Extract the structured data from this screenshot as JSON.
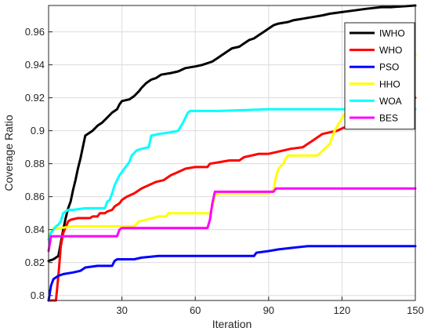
{
  "chart_data": {
    "type": "line",
    "title": "",
    "xlabel": "Iteration",
    "ylabel": "Coverage Ratio",
    "xlim": [
      0,
      150
    ],
    "ylim": [
      0.797,
      0.976
    ],
    "xticks": [
      30,
      60,
      90,
      120,
      150
    ],
    "yticks": [
      0.8,
      0.82,
      0.84,
      0.86,
      0.88,
      0.9,
      0.92,
      0.94,
      0.96
    ],
    "ytick_labels": [
      "0.8",
      "0.82",
      "0.84",
      "0.86",
      "0.88",
      "0.9",
      "0.92",
      "0.94",
      "0.96"
    ],
    "grid": true,
    "legend_position": "top-right",
    "series": [
      {
        "name": "IWHO",
        "color": "#000000",
        "points": [
          [
            0,
            0.821
          ],
          [
            2,
            0.822
          ],
          [
            4,
            0.824
          ],
          [
            5,
            0.832
          ],
          [
            6,
            0.84
          ],
          [
            7,
            0.847
          ],
          [
            8,
            0.853
          ],
          [
            9,
            0.857
          ],
          [
            10,
            0.864
          ],
          [
            11,
            0.87
          ],
          [
            12,
            0.877
          ],
          [
            13,
            0.883
          ],
          [
            14,
            0.89
          ],
          [
            15,
            0.897
          ],
          [
            17,
            0.899
          ],
          [
            18,
            0.9
          ],
          [
            20,
            0.903
          ],
          [
            22,
            0.905
          ],
          [
            24,
            0.908
          ],
          [
            26,
            0.911
          ],
          [
            28,
            0.913
          ],
          [
            29,
            0.916
          ],
          [
            30,
            0.918
          ],
          [
            33,
            0.919
          ],
          [
            35,
            0.921
          ],
          [
            37,
            0.924
          ],
          [
            38,
            0.926
          ],
          [
            40,
            0.929
          ],
          [
            42,
            0.931
          ],
          [
            44,
            0.932
          ],
          [
            46,
            0.934
          ],
          [
            50,
            0.935
          ],
          [
            53,
            0.936
          ],
          [
            56,
            0.938
          ],
          [
            60,
            0.939
          ],
          [
            63,
            0.94
          ],
          [
            65,
            0.941
          ],
          [
            67,
            0.942
          ],
          [
            69,
            0.944
          ],
          [
            71,
            0.946
          ],
          [
            73,
            0.948
          ],
          [
            75,
            0.95
          ],
          [
            78,
            0.951
          ],
          [
            80,
            0.953
          ],
          [
            82,
            0.955
          ],
          [
            84,
            0.956
          ],
          [
            86,
            0.958
          ],
          [
            88,
            0.96
          ],
          [
            90,
            0.962
          ],
          [
            92,
            0.964
          ],
          [
            94,
            0.965
          ],
          [
            98,
            0.966
          ],
          [
            100,
            0.967
          ],
          [
            104,
            0.968
          ],
          [
            108,
            0.969
          ],
          [
            112,
            0.97
          ],
          [
            115,
            0.971
          ],
          [
            120,
            0.972
          ],
          [
            125,
            0.973
          ],
          [
            130,
            0.974
          ],
          [
            136,
            0.975
          ],
          [
            140,
            0.975
          ],
          [
            150,
            0.976
          ]
        ]
      },
      {
        "name": "WHO",
        "color": "#ff0000",
        "points": [
          [
            0,
            0.797
          ],
          [
            3,
            0.797
          ],
          [
            4,
            0.812
          ],
          [
            5,
            0.83
          ],
          [
            6,
            0.838
          ],
          [
            8,
            0.845
          ],
          [
            9,
            0.846
          ],
          [
            12,
            0.847
          ],
          [
            17,
            0.847
          ],
          [
            18,
            0.848
          ],
          [
            20,
            0.848
          ],
          [
            21,
            0.85
          ],
          [
            23,
            0.85
          ],
          [
            24,
            0.851
          ],
          [
            26,
            0.852
          ],
          [
            27,
            0.854
          ],
          [
            29,
            0.856
          ],
          [
            30,
            0.858
          ],
          [
            32,
            0.86
          ],
          [
            35,
            0.862
          ],
          [
            38,
            0.865
          ],
          [
            41,
            0.867
          ],
          [
            44,
            0.869
          ],
          [
            47,
            0.87
          ],
          [
            50,
            0.873
          ],
          [
            53,
            0.875
          ],
          [
            56,
            0.877
          ],
          [
            60,
            0.878
          ],
          [
            65,
            0.878
          ],
          [
            66,
            0.88
          ],
          [
            70,
            0.881
          ],
          [
            74,
            0.882
          ],
          [
            78,
            0.882
          ],
          [
            80,
            0.884
          ],
          [
            86,
            0.886
          ],
          [
            90,
            0.886
          ],
          [
            93,
            0.887
          ],
          [
            99,
            0.889
          ],
          [
            104,
            0.89
          ],
          [
            106,
            0.892
          ],
          [
            108,
            0.894
          ],
          [
            110,
            0.896
          ],
          [
            112,
            0.898
          ],
          [
            115,
            0.899
          ],
          [
            118,
            0.9
          ],
          [
            121,
            0.902
          ],
          [
            124,
            0.904
          ],
          [
            127,
            0.906
          ],
          [
            130,
            0.908
          ],
          [
            133,
            0.909
          ],
          [
            136,
            0.911
          ],
          [
            139,
            0.913
          ],
          [
            142,
            0.914
          ],
          [
            145,
            0.916
          ],
          [
            148,
            0.918
          ],
          [
            150,
            0.92
          ]
        ]
      },
      {
        "name": "PSO",
        "color": "#0000ff",
        "points": [
          [
            0,
            0.797
          ],
          [
            1,
            0.806
          ],
          [
            2,
            0.81
          ],
          [
            4,
            0.812
          ],
          [
            6,
            0.813
          ],
          [
            10,
            0.814
          ],
          [
            13,
            0.815
          ],
          [
            15,
            0.817
          ],
          [
            20,
            0.818
          ],
          [
            26,
            0.818
          ],
          [
            27,
            0.821
          ],
          [
            28,
            0.822
          ],
          [
            35,
            0.822
          ],
          [
            38,
            0.823
          ],
          [
            45,
            0.824
          ],
          [
            60,
            0.824
          ],
          [
            72,
            0.824
          ],
          [
            84,
            0.824
          ],
          [
            85,
            0.826
          ],
          [
            90,
            0.827
          ],
          [
            94,
            0.828
          ],
          [
            100,
            0.829
          ],
          [
            106,
            0.83
          ],
          [
            120,
            0.83
          ],
          [
            150,
            0.83
          ]
        ]
      },
      {
        "name": "HHO",
        "color": "#ffff00",
        "points": [
          [
            0,
            0.836
          ],
          [
            2,
            0.841
          ],
          [
            5,
            0.841
          ],
          [
            10,
            0.842
          ],
          [
            20,
            0.842
          ],
          [
            35,
            0.842
          ],
          [
            37,
            0.845
          ],
          [
            40,
            0.846
          ],
          [
            45,
            0.848
          ],
          [
            48,
            0.848
          ],
          [
            49,
            0.85
          ],
          [
            66,
            0.85
          ],
          [
            67,
            0.854
          ],
          [
            68,
            0.861
          ],
          [
            70,
            0.862
          ],
          [
            75,
            0.862
          ],
          [
            80,
            0.862
          ],
          [
            90,
            0.862
          ],
          [
            92,
            0.864
          ],
          [
            93,
            0.872
          ],
          [
            94,
            0.877
          ],
          [
            96,
            0.88
          ],
          [
            97,
            0.883
          ],
          [
            98,
            0.885
          ],
          [
            105,
            0.885
          ],
          [
            110,
            0.885
          ],
          [
            115,
            0.892
          ],
          [
            117,
            0.9
          ],
          [
            119,
            0.905
          ],
          [
            121,
            0.91
          ],
          [
            123,
            0.913
          ],
          [
            126,
            0.916
          ],
          [
            130,
            0.919
          ],
          [
            134,
            0.924
          ],
          [
            137,
            0.928
          ],
          [
            140,
            0.932
          ],
          [
            143,
            0.936
          ],
          [
            146,
            0.94
          ],
          [
            148,
            0.943
          ],
          [
            150,
            0.946
          ]
        ]
      },
      {
        "name": "WOA",
        "color": "#00ffff",
        "points": [
          [
            0,
            0.834
          ],
          [
            1,
            0.838
          ],
          [
            2,
            0.84
          ],
          [
            3,
            0.842
          ],
          [
            4,
            0.843
          ],
          [
            5,
            0.845
          ],
          [
            6,
            0.85
          ],
          [
            8,
            0.852
          ],
          [
            10,
            0.852
          ],
          [
            15,
            0.853
          ],
          [
            23,
            0.853
          ],
          [
            24,
            0.857
          ],
          [
            25,
            0.858
          ],
          [
            26,
            0.862
          ],
          [
            27,
            0.867
          ],
          [
            28,
            0.87
          ],
          [
            29,
            0.873
          ],
          [
            31,
            0.877
          ],
          [
            33,
            0.881
          ],
          [
            34,
            0.885
          ],
          [
            36,
            0.888
          ],
          [
            38,
            0.889
          ],
          [
            41,
            0.89
          ],
          [
            42,
            0.897
          ],
          [
            45,
            0.898
          ],
          [
            50,
            0.899
          ],
          [
            53,
            0.9
          ],
          [
            55,
            0.905
          ],
          [
            57,
            0.911
          ],
          [
            58,
            0.912
          ],
          [
            70,
            0.912
          ],
          [
            90,
            0.913
          ],
          [
            120,
            0.913
          ],
          [
            150,
            0.913
          ]
        ]
      },
      {
        "name": "BES",
        "color": "#ff00ff",
        "points": [
          [
            0,
            0.827
          ],
          [
            1,
            0.836
          ],
          [
            10,
            0.836
          ],
          [
            18,
            0.836
          ],
          [
            28,
            0.836
          ],
          [
            29,
            0.84
          ],
          [
            30,
            0.841
          ],
          [
            50,
            0.841
          ],
          [
            65,
            0.841
          ],
          [
            66,
            0.846
          ],
          [
            67,
            0.856
          ],
          [
            68,
            0.863
          ],
          [
            75,
            0.863
          ],
          [
            92,
            0.863
          ],
          [
            93,
            0.865
          ],
          [
            120,
            0.865
          ],
          [
            150,
            0.865
          ]
        ]
      }
    ]
  }
}
